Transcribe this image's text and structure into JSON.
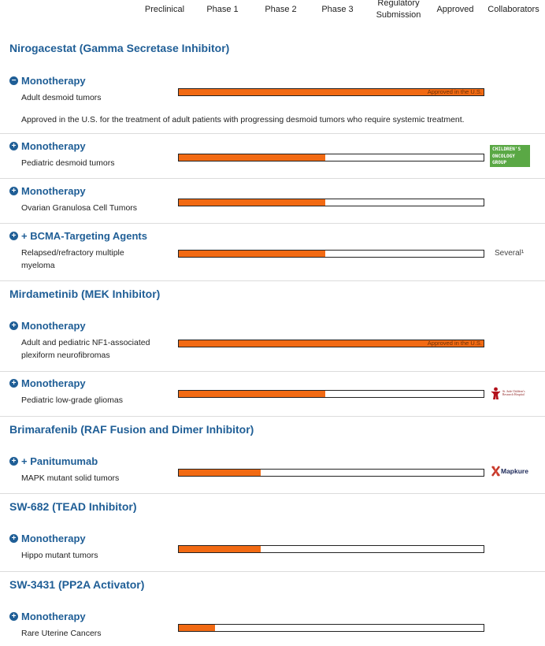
{
  "header": {
    "columns": [
      "Preclinical",
      "Phase 1",
      "Phase 2",
      "Phase 3",
      "Regulatory Submission",
      "Approved",
      "Collaborators"
    ]
  },
  "sections": [
    {
      "title": "Nirogacestat (Gamma Secretase Inhibitor)",
      "entries": [
        {
          "toggle": "minus",
          "title": "Monotherapy",
          "subtitle": "Adult desmoid tumors",
          "progress_pct": 100,
          "bar_label": "Approved in the U.S.",
          "description": "Approved in the U.S. for the treatment of adult patients with progressing desmoid tumors who require systemic treatment."
        },
        {
          "toggle": "plus",
          "title": "Monotherapy",
          "subtitle": "Pediatric desmoid tumors",
          "progress_pct": 48,
          "collaborator": "CHILDREN'S ONCOLOGY GROUP"
        },
        {
          "toggle": "plus",
          "title": "Monotherapy",
          "subtitle": "Ovarian Granulosa Cell Tumors",
          "progress_pct": 48
        },
        {
          "toggle": "plus",
          "title": "+ BCMA-Targeting Agents",
          "subtitle": "Relapsed/refractory multiple myeloma",
          "progress_pct": 48,
          "collaborator": "Several¹"
        }
      ]
    },
    {
      "title": "Mirdametinib (MEK Inhibitor)",
      "entries": [
        {
          "toggle": "plus",
          "title": "Monotherapy",
          "subtitle": "Adult and pediatric NF1-associated plexiform neurofibromas",
          "progress_pct": 100,
          "bar_label": "Approved in the U.S."
        },
        {
          "toggle": "plus",
          "title": "Monotherapy",
          "subtitle": "Pediatric low-grade gliomas",
          "progress_pct": 48,
          "collaborator": "St. Jude Children's Research Hospital"
        }
      ]
    },
    {
      "title": "Brimarafenib (RAF Fusion and Dimer Inhibitor)",
      "entries": [
        {
          "toggle": "plus",
          "title": "+ Panitumumab",
          "subtitle": "MAPK mutant solid tumors",
          "progress_pct": 27,
          "collaborator": "Mapkure"
        }
      ]
    },
    {
      "title": "SW-682 (TEAD Inhibitor)",
      "entries": [
        {
          "toggle": "plus",
          "title": "Monotherapy",
          "subtitle": "Hippo mutant tumors",
          "progress_pct": 27
        }
      ]
    },
    {
      "title": "SW-3431 (PP2A Activator)",
      "entries": [
        {
          "toggle": "plus",
          "title": "Monotherapy",
          "subtitle": "Rare Uterine Cancers",
          "progress_pct": 12
        }
      ]
    }
  ],
  "colors": {
    "accent": "#1f5e96",
    "bar_fill": "#f26a13",
    "cog_green": "#5aa845"
  }
}
